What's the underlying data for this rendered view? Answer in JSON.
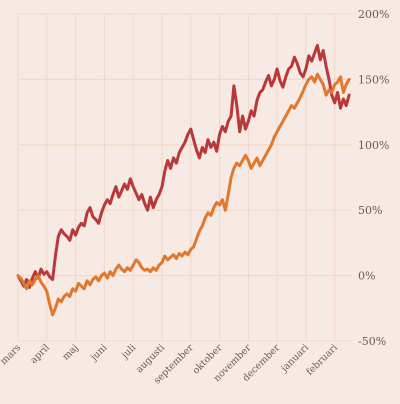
{
  "chart_data": {
    "type": "line",
    "title": "",
    "xlabel": "",
    "ylabel": "",
    "ylim": [
      -50,
      200
    ],
    "yticks": [
      -50,
      0,
      50,
      100,
      150,
      200
    ],
    "ytick_suffix": "%",
    "grid": true,
    "legend": "none",
    "x_domain": [
      0,
      11.6
    ],
    "x_months": [
      "mars",
      "april",
      "maj",
      "juni",
      "juli",
      "augusti",
      "september",
      "oktober",
      "november",
      "december",
      "januari",
      "februari"
    ],
    "series": [
      {
        "color": "#b9383a",
        "points": [
          [
            0.0,
            0
          ],
          [
            0.1,
            -4
          ],
          [
            0.2,
            -8
          ],
          [
            0.3,
            -3
          ],
          [
            0.4,
            -9
          ],
          [
            0.5,
            -2
          ],
          [
            0.6,
            3
          ],
          [
            0.7,
            -2
          ],
          [
            0.8,
            5
          ],
          [
            0.9,
            1
          ],
          [
            1.0,
            3
          ],
          [
            1.1,
            -1
          ],
          [
            1.2,
            -3
          ],
          [
            1.3,
            15
          ],
          [
            1.4,
            30
          ],
          [
            1.5,
            35
          ],
          [
            1.6,
            32
          ],
          [
            1.7,
            30
          ],
          [
            1.8,
            27
          ],
          [
            1.9,
            35
          ],
          [
            2.0,
            31
          ],
          [
            2.1,
            37
          ],
          [
            2.2,
            40
          ],
          [
            2.3,
            38
          ],
          [
            2.4,
            48
          ],
          [
            2.5,
            52
          ],
          [
            2.6,
            45
          ],
          [
            2.7,
            43
          ],
          [
            2.8,
            40
          ],
          [
            2.9,
            48
          ],
          [
            3.0,
            54
          ],
          [
            3.1,
            58
          ],
          [
            3.2,
            55
          ],
          [
            3.3,
            62
          ],
          [
            3.4,
            68
          ],
          [
            3.5,
            60
          ],
          [
            3.6,
            65
          ],
          [
            3.7,
            70
          ],
          [
            3.8,
            66
          ],
          [
            3.9,
            74
          ],
          [
            4.0,
            68
          ],
          [
            4.1,
            63
          ],
          [
            4.2,
            58
          ],
          [
            4.3,
            62
          ],
          [
            4.4,
            55
          ],
          [
            4.5,
            50
          ],
          [
            4.6,
            60
          ],
          [
            4.7,
            52
          ],
          [
            4.8,
            58
          ],
          [
            4.9,
            62
          ],
          [
            5.0,
            68
          ],
          [
            5.1,
            80
          ],
          [
            5.2,
            88
          ],
          [
            5.3,
            82
          ],
          [
            5.4,
            90
          ],
          [
            5.5,
            86
          ],
          [
            5.6,
            94
          ],
          [
            5.7,
            98
          ],
          [
            5.8,
            102
          ],
          [
            5.9,
            108
          ],
          [
            6.0,
            112
          ],
          [
            6.1,
            104
          ],
          [
            6.2,
            96
          ],
          [
            6.3,
            90
          ],
          [
            6.4,
            98
          ],
          [
            6.5,
            94
          ],
          [
            6.6,
            104
          ],
          [
            6.7,
            98
          ],
          [
            6.8,
            102
          ],
          [
            6.9,
            95
          ],
          [
            7.0,
            108
          ],
          [
            7.1,
            114
          ],
          [
            7.2,
            110
          ],
          [
            7.3,
            118
          ],
          [
            7.4,
            122
          ],
          [
            7.5,
            145
          ],
          [
            7.6,
            130
          ],
          [
            7.7,
            110
          ],
          [
            7.8,
            122
          ],
          [
            7.9,
            112
          ],
          [
            8.0,
            118
          ],
          [
            8.1,
            126
          ],
          [
            8.2,
            122
          ],
          [
            8.3,
            134
          ],
          [
            8.4,
            140
          ],
          [
            8.5,
            142
          ],
          [
            8.6,
            148
          ],
          [
            8.7,
            153
          ],
          [
            8.8,
            145
          ],
          [
            8.9,
            150
          ],
          [
            9.0,
            158
          ],
          [
            9.1,
            149
          ],
          [
            9.2,
            144
          ],
          [
            9.3,
            152
          ],
          [
            9.4,
            158
          ],
          [
            9.5,
            160
          ],
          [
            9.6,
            167
          ],
          [
            9.7,
            162
          ],
          [
            9.8,
            155
          ],
          [
            9.9,
            152
          ],
          [
            10.0,
            158
          ],
          [
            10.1,
            168
          ],
          [
            10.2,
            164
          ],
          [
            10.3,
            170
          ],
          [
            10.4,
            176
          ],
          [
            10.5,
            165
          ],
          [
            10.6,
            172
          ],
          [
            10.7,
            160
          ],
          [
            10.8,
            150
          ],
          [
            10.9,
            138
          ],
          [
            11.0,
            132
          ],
          [
            11.1,
            140
          ],
          [
            11.2,
            128
          ],
          [
            11.3,
            135
          ],
          [
            11.4,
            130
          ],
          [
            11.5,
            138
          ]
        ]
      },
      {
        "color": "#e0782e",
        "points": [
          [
            0.0,
            0
          ],
          [
            0.1,
            -2
          ],
          [
            0.2,
            -6
          ],
          [
            0.3,
            -10
          ],
          [
            0.4,
            -4
          ],
          [
            0.5,
            -7
          ],
          [
            0.6,
            -3
          ],
          [
            0.7,
            0
          ],
          [
            0.8,
            -5
          ],
          [
            0.9,
            -8
          ],
          [
            1.0,
            -12
          ],
          [
            1.1,
            -22
          ],
          [
            1.2,
            -30
          ],
          [
            1.3,
            -25
          ],
          [
            1.4,
            -18
          ],
          [
            1.5,
            -20
          ],
          [
            1.6,
            -16
          ],
          [
            1.7,
            -14
          ],
          [
            1.8,
            -16
          ],
          [
            1.9,
            -10
          ],
          [
            2.0,
            -12
          ],
          [
            2.1,
            -6
          ],
          [
            2.2,
            -8
          ],
          [
            2.3,
            -10
          ],
          [
            2.4,
            -4
          ],
          [
            2.5,
            -7
          ],
          [
            2.6,
            -3
          ],
          [
            2.7,
            -1
          ],
          [
            2.8,
            -4
          ],
          [
            2.9,
            0
          ],
          [
            3.0,
            2
          ],
          [
            3.1,
            -2
          ],
          [
            3.2,
            3
          ],
          [
            3.3,
            0
          ],
          [
            3.4,
            5
          ],
          [
            3.5,
            8
          ],
          [
            3.6,
            5
          ],
          [
            3.7,
            3
          ],
          [
            3.8,
            6
          ],
          [
            3.9,
            4
          ],
          [
            4.0,
            8
          ],
          [
            4.1,
            12
          ],
          [
            4.2,
            10
          ],
          [
            4.3,
            6
          ],
          [
            4.4,
            4
          ],
          [
            4.5,
            5
          ],
          [
            4.6,
            3
          ],
          [
            4.7,
            6
          ],
          [
            4.8,
            4
          ],
          [
            4.9,
            8
          ],
          [
            5.0,
            10
          ],
          [
            5.1,
            15
          ],
          [
            5.2,
            12
          ],
          [
            5.3,
            14
          ],
          [
            5.4,
            16
          ],
          [
            5.5,
            13
          ],
          [
            5.6,
            17
          ],
          [
            5.7,
            15
          ],
          [
            5.8,
            18
          ],
          [
            5.9,
            16
          ],
          [
            6.0,
            20
          ],
          [
            6.1,
            22
          ],
          [
            6.2,
            28
          ],
          [
            6.3,
            34
          ],
          [
            6.4,
            38
          ],
          [
            6.5,
            44
          ],
          [
            6.6,
            48
          ],
          [
            6.7,
            46
          ],
          [
            6.8,
            52
          ],
          [
            6.9,
            56
          ],
          [
            7.0,
            54
          ],
          [
            7.1,
            58
          ],
          [
            7.2,
            50
          ],
          [
            7.3,
            62
          ],
          [
            7.4,
            75
          ],
          [
            7.5,
            82
          ],
          [
            7.6,
            86
          ],
          [
            7.7,
            84
          ],
          [
            7.8,
            88
          ],
          [
            7.9,
            92
          ],
          [
            8.0,
            88
          ],
          [
            8.1,
            82
          ],
          [
            8.2,
            86
          ],
          [
            8.3,
            90
          ],
          [
            8.4,
            84
          ],
          [
            8.5,
            88
          ],
          [
            8.6,
            92
          ],
          [
            8.7,
            96
          ],
          [
            8.8,
            100
          ],
          [
            8.9,
            106
          ],
          [
            9.0,
            110
          ],
          [
            9.1,
            114
          ],
          [
            9.2,
            118
          ],
          [
            9.3,
            122
          ],
          [
            9.4,
            126
          ],
          [
            9.5,
            130
          ],
          [
            9.6,
            128
          ],
          [
            9.7,
            132
          ],
          [
            9.8,
            136
          ],
          [
            9.9,
            141
          ],
          [
            10.0,
            146
          ],
          [
            10.1,
            150
          ],
          [
            10.2,
            152
          ],
          [
            10.3,
            148
          ],
          [
            10.4,
            154
          ],
          [
            10.5,
            150
          ],
          [
            10.6,
            146
          ],
          [
            10.7,
            138
          ],
          [
            10.8,
            142
          ],
          [
            10.9,
            140
          ],
          [
            11.0,
            146
          ],
          [
            11.1,
            148
          ],
          [
            11.2,
            152
          ],
          [
            11.3,
            140
          ],
          [
            11.4,
            146
          ],
          [
            11.5,
            150
          ]
        ]
      }
    ]
  }
}
